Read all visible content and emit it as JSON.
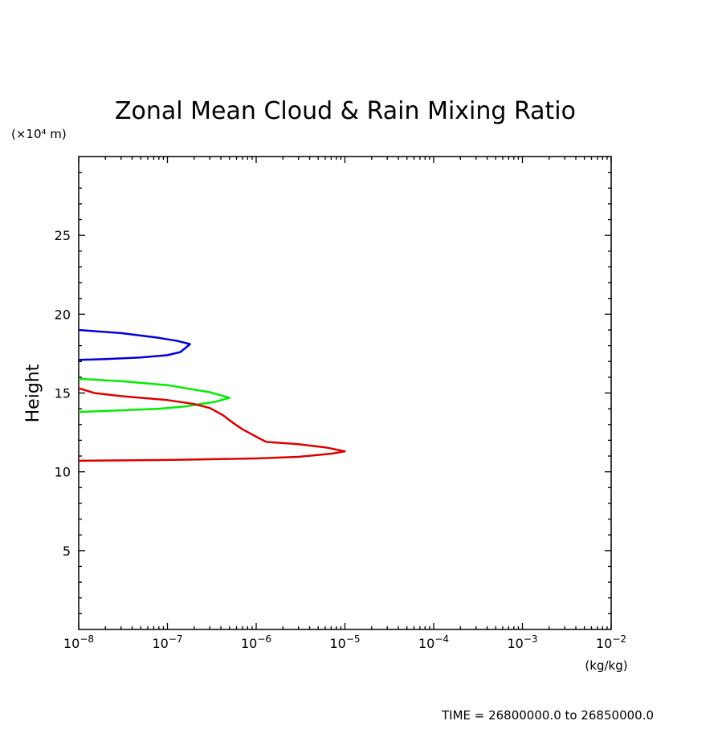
{
  "chart_data": {
    "type": "line",
    "title": "Zonal Mean Cloud & Rain Mixing Ratio",
    "xlabel": "(kg/kg)",
    "ylabel": "Height",
    "y_multiplier_label": "(×10⁴ m)",
    "x_scale": "log",
    "xlim": [
      1e-08,
      0.01
    ],
    "ylim": [
      0,
      30
    ],
    "x_ticks": [
      1e-08,
      1e-07,
      1e-06,
      1e-05,
      0.0001,
      0.001,
      0.01
    ],
    "x_tick_labels": [
      {
        "base": "10",
        "exp": "−8"
      },
      {
        "base": "10",
        "exp": "−7"
      },
      {
        "base": "10",
        "exp": "−6"
      },
      {
        "base": "10",
        "exp": "−5"
      },
      {
        "base": "10",
        "exp": "−4"
      },
      {
        "base": "10",
        "exp": "−3"
      },
      {
        "base": "10",
        "exp": "−2"
      }
    ],
    "y_ticks": [
      5,
      10,
      15,
      20,
      25
    ],
    "y_tick_labels": [
      "5",
      "10",
      "15",
      "20",
      "25"
    ],
    "series": [
      {
        "color": "#0000dd",
        "points": [
          [
            1e-08,
            19.0
          ],
          [
            3e-08,
            18.8
          ],
          [
            8e-08,
            18.5
          ],
          [
            1.3e-07,
            18.3
          ],
          [
            1.8e-07,
            18.1
          ],
          [
            1.4e-07,
            17.6
          ],
          [
            1e-07,
            17.4
          ],
          [
            5e-08,
            17.25
          ],
          [
            2e-08,
            17.15
          ],
          [
            1e-08,
            17.1
          ]
        ]
      },
      {
        "color": "#00ee00",
        "points": [
          [
            1e-08,
            15.9
          ],
          [
            3e-08,
            15.75
          ],
          [
            1e-07,
            15.5
          ],
          [
            3e-07,
            15.05
          ],
          [
            5e-07,
            14.7
          ],
          [
            3.5e-07,
            14.45
          ],
          [
            1.6e-07,
            14.15
          ],
          [
            8e-08,
            14.0
          ],
          [
            3e-08,
            13.9
          ],
          [
            1e-08,
            13.8
          ]
        ]
      },
      {
        "color": "#dd0000",
        "points": [
          [
            1e-08,
            15.3
          ],
          [
            1.5e-08,
            15.0
          ],
          [
            3e-08,
            14.8
          ],
          [
            1e-07,
            14.55
          ],
          [
            2e-07,
            14.3
          ],
          [
            3e-07,
            14.05
          ],
          [
            4.2e-07,
            13.6
          ],
          [
            5.5e-07,
            13.1
          ],
          [
            7e-07,
            12.7
          ],
          [
            1.1e-06,
            12.1
          ],
          [
            1.3e-06,
            11.9
          ],
          [
            3e-06,
            11.75
          ],
          [
            6e-06,
            11.55
          ],
          [
            1e-05,
            11.3
          ],
          [
            7e-06,
            11.15
          ],
          [
            3e-06,
            10.95
          ],
          [
            1e-06,
            10.85
          ],
          [
            3e-07,
            10.8
          ],
          [
            1e-07,
            10.75
          ],
          [
            1e-08,
            10.7
          ]
        ]
      }
    ]
  },
  "footer": {
    "time_range": "TIME = 26800000.0 to 26850000.0"
  }
}
